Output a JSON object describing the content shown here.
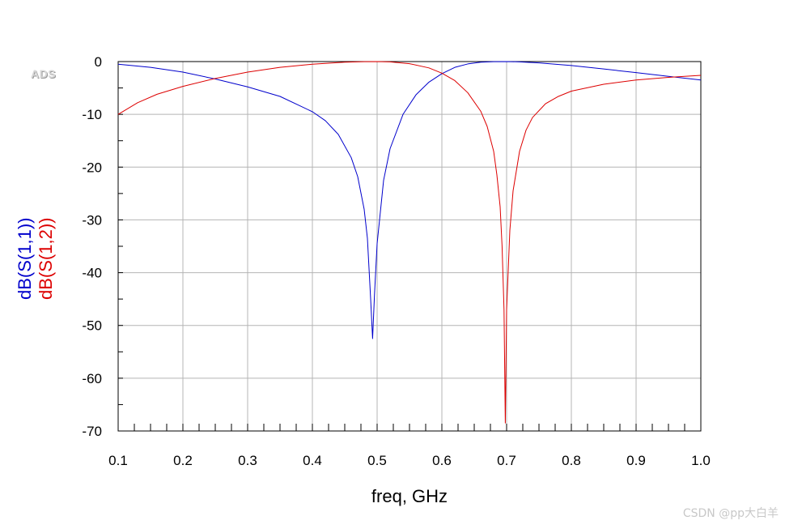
{
  "branding": {
    "logo_text": "ADS",
    "watermark": "CSDN @pp大白羊"
  },
  "chart_data": {
    "type": "line",
    "title": "",
    "xlabel": "freq, GHz",
    "ylabel": "",
    "xlim": [
      0.1,
      1.0
    ],
    "ylim": [
      -70,
      0
    ],
    "grid": true,
    "xticks": [
      "0.1",
      "0.2",
      "0.3",
      "0.4",
      "0.5",
      "0.6",
      "0.7",
      "0.8",
      "0.9",
      "1.0"
    ],
    "yticks": [
      "0",
      "-10",
      "-20",
      "-30",
      "-40",
      "-50",
      "-60",
      "-70"
    ],
    "series": [
      {
        "name": "dB(S(1,1))",
        "color": "#0000cc",
        "x": [
          0.1,
          0.15,
          0.2,
          0.25,
          0.3,
          0.35,
          0.4,
          0.42,
          0.44,
          0.46,
          0.47,
          0.48,
          0.485,
          0.49,
          0.493,
          0.496,
          0.5,
          0.51,
          0.52,
          0.54,
          0.56,
          0.58,
          0.6,
          0.62,
          0.64,
          0.66,
          0.68,
          0.7,
          0.72,
          0.75,
          0.8,
          0.85,
          0.9,
          0.95,
          1.0
        ],
        "y": [
          -0.5,
          -1.1,
          -2.0,
          -3.3,
          -4.8,
          -6.6,
          -9.5,
          -11.2,
          -13.8,
          -18.2,
          -21.8,
          -28.0,
          -33.5,
          -45.0,
          -52.5,
          -44.0,
          -34.5,
          -22.5,
          -16.5,
          -10.0,
          -6.3,
          -3.9,
          -2.3,
          -1.1,
          -0.45,
          -0.12,
          -0.02,
          0.0,
          -0.05,
          -0.25,
          -0.75,
          -1.4,
          -2.1,
          -2.8,
          -3.5
        ]
      },
      {
        "name": "dB(S(1,2))",
        "color": "#dd0000",
        "x": [
          0.1,
          0.13,
          0.16,
          0.2,
          0.25,
          0.3,
          0.35,
          0.4,
          0.45,
          0.48,
          0.5,
          0.52,
          0.55,
          0.58,
          0.6,
          0.62,
          0.64,
          0.66,
          0.67,
          0.68,
          0.685,
          0.69,
          0.693,
          0.696,
          0.698,
          0.7,
          0.705,
          0.71,
          0.72,
          0.73,
          0.74,
          0.76,
          0.78,
          0.8,
          0.85,
          0.9,
          0.95,
          1.0
        ],
        "y": [
          -10.0,
          -7.8,
          -6.2,
          -4.7,
          -3.2,
          -2.0,
          -1.1,
          -0.5,
          -0.12,
          -0.02,
          0.0,
          -0.05,
          -0.4,
          -1.2,
          -2.2,
          -3.6,
          -5.9,
          -9.4,
          -12.3,
          -17.0,
          -21.5,
          -27.5,
          -35.0,
          -47.0,
          -68.5,
          -47.0,
          -32.0,
          -24.5,
          -17.0,
          -13.0,
          -10.6,
          -8.0,
          -6.6,
          -5.6,
          -4.3,
          -3.5,
          -3.0,
          -2.6
        ]
      }
    ]
  }
}
